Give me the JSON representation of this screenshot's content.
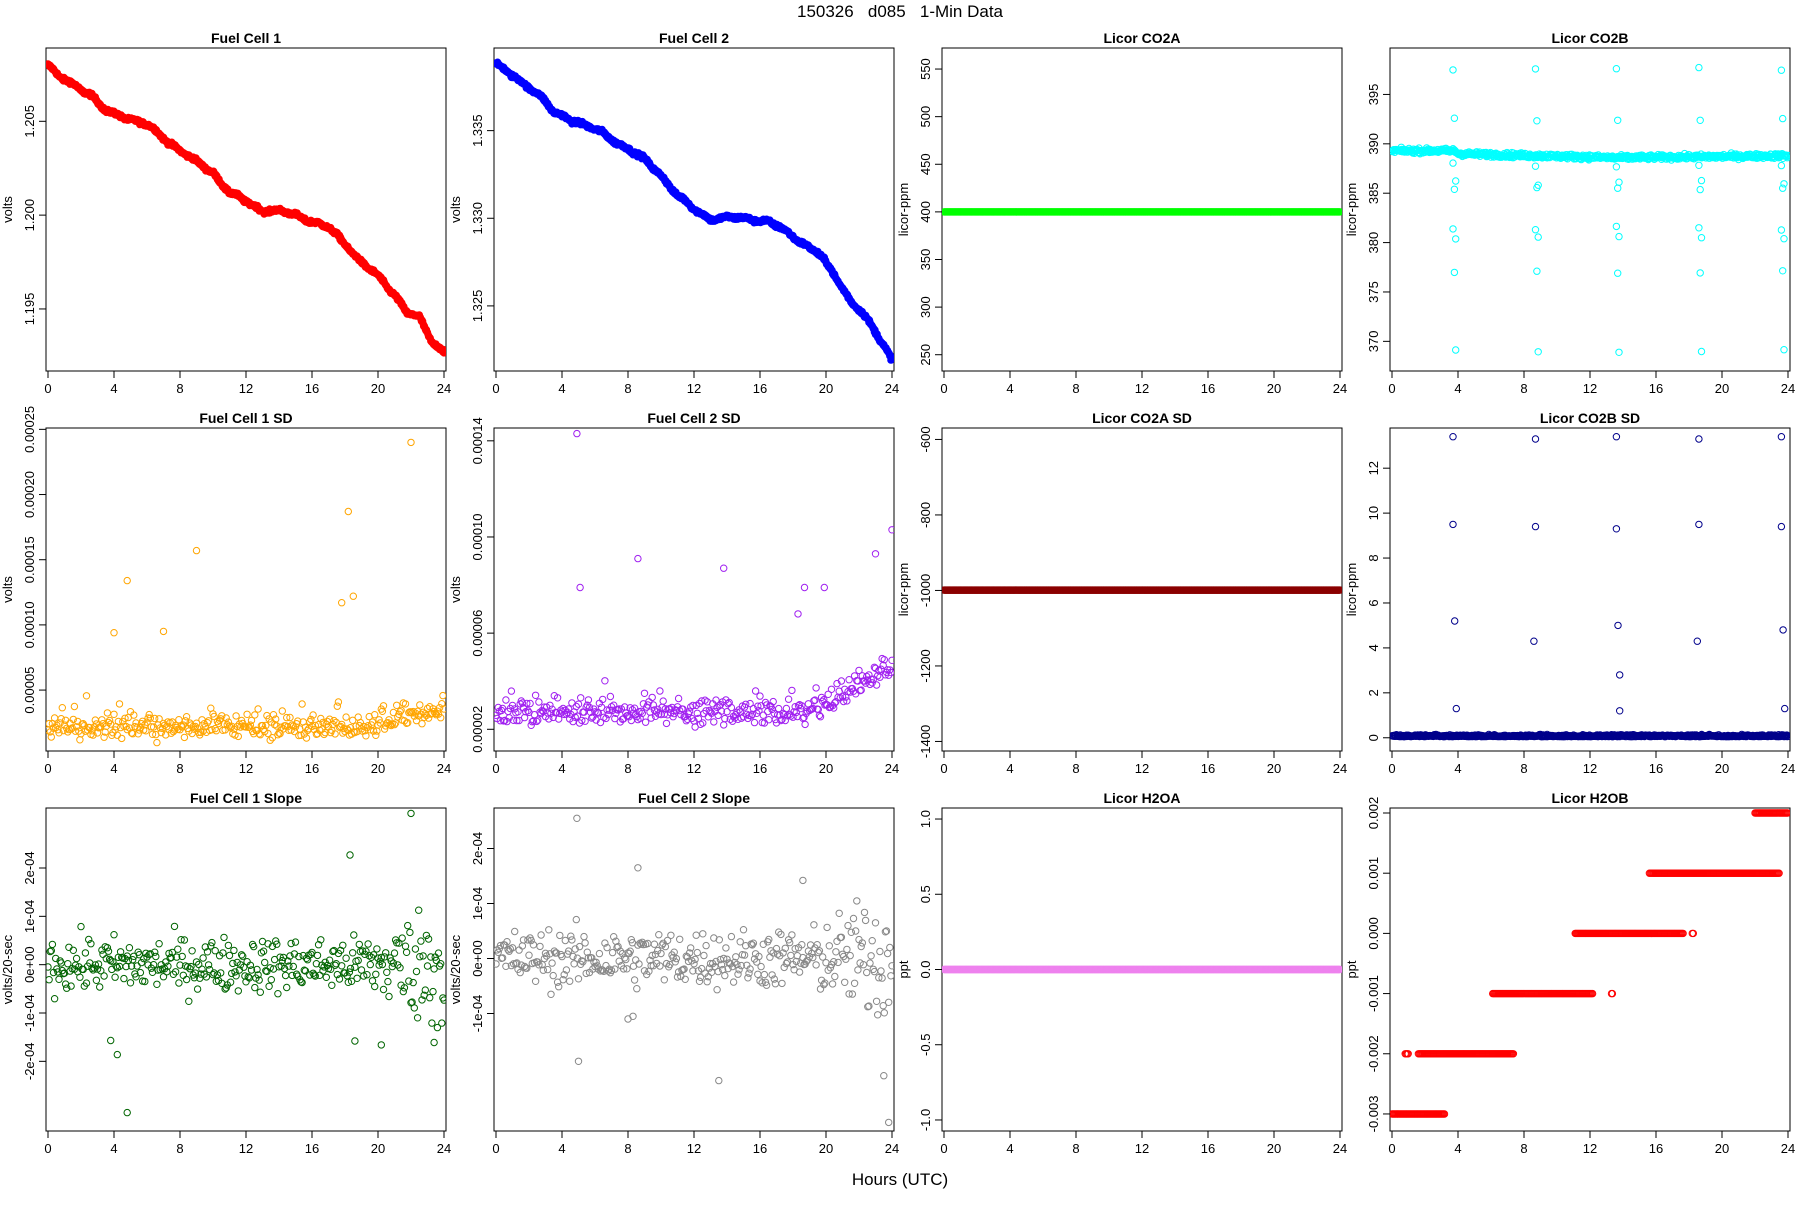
{
  "figure": {
    "main_title": "150326   d085   1-Min Data",
    "x_axis_title": "Hours (UTC)"
  },
  "chart_data": [
    {
      "id": "fc1",
      "type": "scatter",
      "title": "Fuel Cell 1",
      "ylabel": "volts",
      "color": "#ff0000",
      "filled": true,
      "xlim": [
        0,
        24
      ],
      "ylim": [
        1.1918,
        1.2088
      ],
      "xticks": [
        "0",
        "4",
        "8",
        "12",
        "16",
        "20",
        "24"
      ],
      "yticks": [
        "1.195",
        "1.200",
        "1.205"
      ],
      "trend": [
        [
          0,
          1.208
        ],
        [
          0.7,
          1.2073
        ],
        [
          1.3,
          1.2071
        ],
        [
          2.5,
          1.2065
        ],
        [
          3.5,
          1.2055
        ],
        [
          4.5,
          1.2053
        ],
        [
          6,
          1.2048
        ],
        [
          7.5,
          1.2038
        ],
        [
          9,
          1.2028
        ],
        [
          10,
          1.2023
        ],
        [
          11,
          1.2012
        ],
        [
          12,
          1.2007
        ],
        [
          13,
          1.2003
        ],
        [
          14,
          1.2002
        ],
        [
          15,
          1.2
        ],
        [
          16,
          1.1997
        ],
        [
          17,
          1.1993
        ],
        [
          18,
          1.1985
        ],
        [
          19,
          1.1975
        ],
        [
          20,
          1.1967
        ],
        [
          21,
          1.1958
        ],
        [
          21.8,
          1.1948
        ],
        [
          22.5,
          1.1945
        ],
        [
          23.3,
          1.1932
        ],
        [
          24,
          1.1928
        ]
      ]
    },
    {
      "id": "fc2",
      "type": "scatter",
      "title": "Fuel Cell 2",
      "ylabel": "volts",
      "color": "#0000ff",
      "filled": true,
      "xlim": [
        0,
        24
      ],
      "ylim": [
        1.3214,
        1.3396
      ],
      "xticks": [
        "0",
        "4",
        "8",
        "12",
        "16",
        "20",
        "24"
      ],
      "yticks": [
        "1.325",
        "1.330",
        "1.335"
      ],
      "trend": [
        [
          0,
          1.3388
        ],
        [
          0.8,
          1.3382
        ],
        [
          1.2,
          1.338
        ],
        [
          2.5,
          1.3372
        ],
        [
          3.5,
          1.336
        ],
        [
          5,
          1.3355
        ],
        [
          6.5,
          1.3348
        ],
        [
          8,
          1.334
        ],
        [
          9,
          1.3333
        ],
        [
          10,
          1.3325
        ],
        [
          11,
          1.3313
        ],
        [
          12,
          1.3305
        ],
        [
          13,
          1.33
        ],
        [
          14.5,
          1.33
        ],
        [
          15.5,
          1.33
        ],
        [
          16.5,
          1.3298
        ],
        [
          18,
          1.329
        ],
        [
          19.5,
          1.328
        ],
        [
          20.5,
          1.3268
        ],
        [
          21.5,
          1.3253
        ],
        [
          22,
          1.3248
        ],
        [
          23,
          1.3235
        ],
        [
          24,
          1.322
        ]
      ]
    },
    {
      "id": "co2a",
      "type": "scatter",
      "title": "Licor CO2A",
      "ylabel": "licor-ppm",
      "color": "#00ff00",
      "filled": true,
      "xlim": [
        0,
        24
      ],
      "ylim": [
        235,
        570
      ],
      "xticks": [
        "0",
        "4",
        "8",
        "12",
        "16",
        "20",
        "24"
      ],
      "yticks": [
        "250",
        "300",
        "350",
        "400",
        "450",
        "500",
        "550"
      ],
      "constant": 400
    },
    {
      "id": "co2b",
      "type": "scatter",
      "title": "Licor CO2B",
      "ylabel": "licor-ppm",
      "color": "#00ffff",
      "filled": false,
      "xlim": [
        0,
        24
      ],
      "ylim": [
        367.2,
        399.5
      ],
      "xticks": [
        "0",
        "4",
        "8",
        "12",
        "16",
        "20",
        "24"
      ],
      "yticks": [
        "370",
        "375",
        "380",
        "385",
        "390",
        "395"
      ],
      "base": [
        [
          0,
          389.3
        ],
        [
          3.8,
          389.3
        ],
        [
          4,
          389.0
        ],
        [
          13.5,
          388.6
        ],
        [
          14,
          388.6
        ],
        [
          24,
          388.8
        ]
      ],
      "spike_hours": [
        3.7,
        8.7,
        13.6,
        18.6,
        23.6
      ],
      "spike_values": [
        397.5,
        392.5,
        386.0,
        381.5,
        377.0,
        369.0,
        387.8,
        385.5,
        380.5
      ]
    },
    {
      "id": "fc1sd",
      "type": "scatter",
      "title": "Fuel Cell 1 SD",
      "ylabel": "volts",
      "color": "#ffa500",
      "filled": false,
      "xlim": [
        0,
        24
      ],
      "ylim": [
        4.8e-06,
        0.0002495
      ],
      "xticks": [
        "0",
        "4",
        "8",
        "12",
        "16",
        "20",
        "24"
      ],
      "yticks": [
        "0.00005",
        "0.00010",
        "0.00015",
        "0.00020",
        "0.00025"
      ],
      "base": 2e-05,
      "outliers": [
        [
          22,
          0.00024
        ],
        [
          18.2,
          0.000187
        ],
        [
          9,
          0.000157
        ],
        [
          4.8,
          0.000134
        ],
        [
          18.5,
          0.000122
        ],
        [
          17.8,
          0.000117
        ],
        [
          4,
          9.4e-05
        ],
        [
          7,
          9.5e-05
        ]
      ]
    },
    {
      "id": "fc2sd",
      "type": "scatter",
      "title": "Fuel Cell 2 SD",
      "ylabel": "volts",
      "color": "#a020f0",
      "filled": false,
      "xlim": [
        0,
        24
      ],
      "ylim": [
        1.18e-05,
        0.0001445
      ],
      "xticks": [
        "0",
        "4",
        "8",
        "12",
        "16",
        "20",
        "24"
      ],
      "yticks": [
        "0.00002",
        "0.00006",
        "0.00010",
        "0.00014"
      ],
      "base": 2.6e-05,
      "outliers": [
        [
          4.9,
          0.000143
        ],
        [
          24,
          0.000103
        ],
        [
          5.1,
          7.9e-05
        ],
        [
          8.6,
          9.1e-05
        ],
        [
          13.8,
          8.7e-05
        ],
        [
          18.7,
          7.9e-05
        ],
        [
          19.9,
          7.9e-05
        ],
        [
          18.3,
          6.8e-05
        ],
        [
          23,
          9.3e-05
        ]
      ]
    },
    {
      "id": "co2asd",
      "type": "scatter",
      "title": "Licor CO2A SD",
      "ylabel": "licor-ppm",
      "color": "#8b0000",
      "filled": true,
      "xlim": [
        0,
        24
      ],
      "ylim": [
        -1420,
        -575
      ],
      "xticks": [
        "0",
        "4",
        "8",
        "12",
        "16",
        "20",
        "24"
      ],
      "yticks": [
        "-1400",
        "-1200",
        "-1000",
        "-800",
        "-600"
      ],
      "constant": -999
    },
    {
      "id": "co2bsd",
      "type": "scatter",
      "title": "Licor CO2B SD",
      "ylabel": "licor-ppm",
      "color": "#00008b",
      "filled": false,
      "xlim": [
        0,
        24
      ],
      "ylim": [
        -0.5,
        13.7
      ],
      "xticks": [
        "0",
        "4",
        "8",
        "12",
        "16",
        "20",
        "24"
      ],
      "yticks": [
        "0",
        "2",
        "4",
        "6",
        "8",
        "10",
        "12"
      ],
      "base": 0.05,
      "spike_hours": [
        3.7,
        8.7,
        13.6,
        18.6,
        23.6
      ],
      "spike_values": [
        13.4,
        9.5,
        5.2,
        1.3
      ]
    },
    {
      "id": "fc1slope",
      "type": "scatter",
      "title": "Fuel Cell 1 Slope",
      "ylabel": "volts/20-sec",
      "color": "#006400",
      "filled": false,
      "xlim": [
        0,
        24
      ],
      "ylim": [
        -0.00034,
        0.00032
      ],
      "xticks": [
        "0",
        "4",
        "8",
        "12",
        "16",
        "20",
        "24"
      ],
      "yticks": [
        "-2e-04",
        "-1e-04",
        "0e+00",
        "1e-04",
        "2e-04"
      ],
      "spread": 2.8e-05,
      "outliers": [
        [
          22,
          0.000313
        ],
        [
          18.3,
          0.000227
        ],
        [
          4.8,
          -0.000306
        ],
        [
          4.2,
          -0.000186
        ],
        [
          3.8,
          -0.000157
        ],
        [
          18.6,
          -0.000158
        ],
        [
          20.2,
          -0.000166
        ],
        [
          23.4,
          -0.000161
        ]
      ]
    },
    {
      "id": "fc2slope",
      "type": "scatter",
      "title": "Fuel Cell 2 Slope",
      "ylabel": "volts/20-sec",
      "color": "#888888",
      "filled": false,
      "xlim": [
        0,
        24
      ],
      "ylim": [
        -0.00031,
        0.00027
      ],
      "xticks": [
        "0",
        "4",
        "8",
        "12",
        "16",
        "20",
        "24"
      ],
      "yticks": [
        "-1e-04",
        "0e+00",
        "1e-04",
        "2e-04"
      ],
      "spread": 2.6e-05,
      "outliers": [
        [
          4.9,
          0.000255
        ],
        [
          8.6,
          0.000165
        ],
        [
          18.6,
          0.000142
        ],
        [
          13.5,
          -0.000222
        ],
        [
          5,
          -0.000187
        ],
        [
          23.8,
          -0.000298
        ],
        [
          23.5,
          -0.000213
        ],
        [
          8,
          -0.00011
        ],
        [
          8.3,
          -0.000105
        ]
      ]
    },
    {
      "id": "h2oa",
      "type": "scatter",
      "title": "Licor H2OA",
      "ylabel": "ppt",
      "color": "#ee82ee",
      "filled": true,
      "xlim": [
        0,
        24
      ],
      "ylim": [
        -1.06,
        1.06
      ],
      "xticks": [
        "0",
        "4",
        "8",
        "12",
        "16",
        "20",
        "24"
      ],
      "yticks": [
        "-1.0",
        "-0.5",
        "0.0",
        "0.5",
        "1.0"
      ],
      "constant": 0
    },
    {
      "id": "h2ob",
      "type": "scatter",
      "title": "Licor H2OB",
      "ylabel": "ppt",
      "color": "#ff0000",
      "filled": false,
      "xlim": [
        0,
        24
      ],
      "ylim": [
        -0.00325,
        0.00205
      ],
      "xticks": [
        "0",
        "4",
        "8",
        "12",
        "16",
        "20",
        "24"
      ],
      "yticks": [
        "-0.003",
        "-0.002",
        "-0.001",
        "0.000",
        "0.001",
        "0.002"
      ],
      "steps": [
        [
          0,
          3.2,
          -0.003
        ],
        [
          0.8,
          1.0,
          -0.002
        ],
        [
          1.6,
          7.4,
          -0.002
        ],
        [
          6.1,
          12.2,
          -0.001
        ],
        [
          13.3,
          13.4,
          -0.001
        ],
        [
          11.1,
          17.7,
          0.0
        ],
        [
          18.2,
          18.3,
          0.0
        ],
        [
          15.6,
          23.5,
          0.001
        ],
        [
          22.0,
          24,
          0.002
        ]
      ]
    }
  ]
}
